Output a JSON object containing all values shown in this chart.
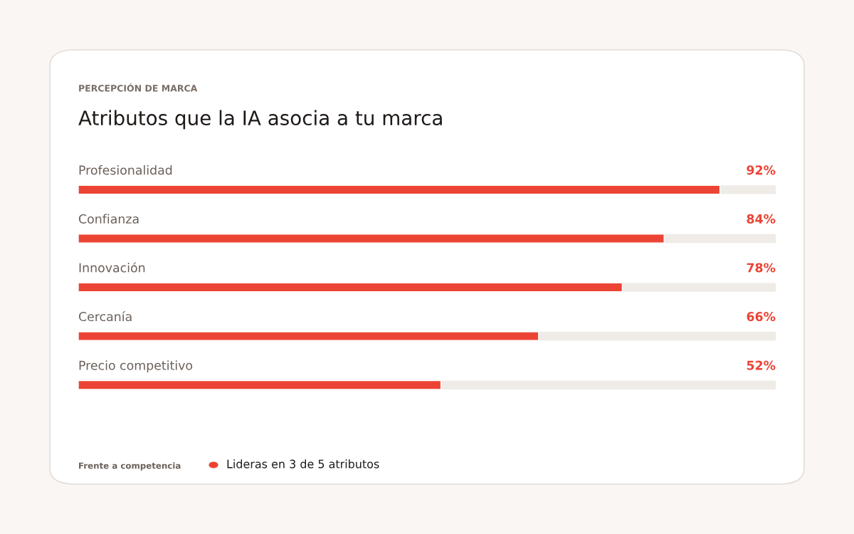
{
  "chart_data": {
    "type": "bar",
    "orientation": "horizontal",
    "subtitle": "PERCEPCIÓN DE MARCA",
    "title": "Atributos que la IA asocia a tu marca",
    "categories": [
      "Profesionalidad",
      "Confianza",
      "Innovación",
      "Cercanía",
      "Precio competitivo"
    ],
    "values": [
      92,
      84,
      78,
      66,
      52
    ],
    "color": "#ec4434",
    "xlim": [
      0,
      100
    ],
    "value_labels": [
      "92%",
      "84%",
      "78%",
      "66%",
      "52%"
    ],
    "annotations": [
      "Frente a competencia",
      "Lideras en 3 de 5 atributos"
    ]
  }
}
